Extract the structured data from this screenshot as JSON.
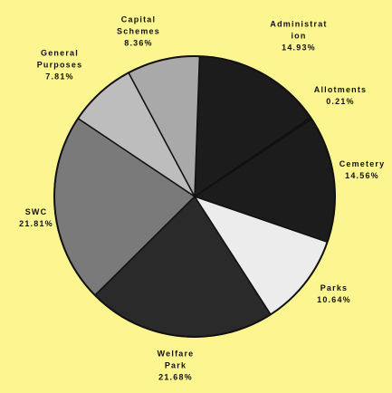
{
  "chart_data": {
    "type": "pie",
    "title": "",
    "slices": [
      {
        "label": "Administrat ion",
        "value": 14.93,
        "value_text": "14.93%",
        "color": "#1c1c1c",
        "label_lines": [
          "Administrat",
          "ion",
          "14.93%"
        ]
      },
      {
        "label": "Allotments",
        "value": 0.21,
        "value_text": "0.21%",
        "color": "#1c1c1c",
        "label_lines": [
          "Allotments",
          "0.21%"
        ]
      },
      {
        "label": "Cemetery",
        "value": 14.56,
        "value_text": "14.56%",
        "color": "#1c1c1c",
        "label_lines": [
          "Cemetery",
          "14.56%"
        ]
      },
      {
        "label": "Parks",
        "value": 10.64,
        "value_text": "10.64%",
        "color": "#ececec",
        "label_lines": [
          "Parks",
          "10.64%"
        ]
      },
      {
        "label": "Welfare Park",
        "value": 21.68,
        "value_text": "21.68%",
        "color": "#2a2a2a",
        "label_lines": [
          "Welfare",
          "Park",
          "21.68%"
        ]
      },
      {
        "label": "SWC",
        "value": 21.81,
        "value_text": "21.81%",
        "color": "#7a7a7a",
        "label_lines": [
          "SWC",
          "21.81%"
        ]
      },
      {
        "label": "General Purposes",
        "value": 7.81,
        "value_text": "7.81%",
        "color": "#bdbdbd",
        "label_lines": [
          "General",
          "Purposes",
          "7.81%"
        ]
      },
      {
        "label": "Capital Schemes",
        "value": 8.36,
        "value_text": "8.36%",
        "color": "#a9a9a9",
        "label_lines": [
          "Capital",
          "Schemes",
          "8.36%"
        ]
      }
    ]
  }
}
